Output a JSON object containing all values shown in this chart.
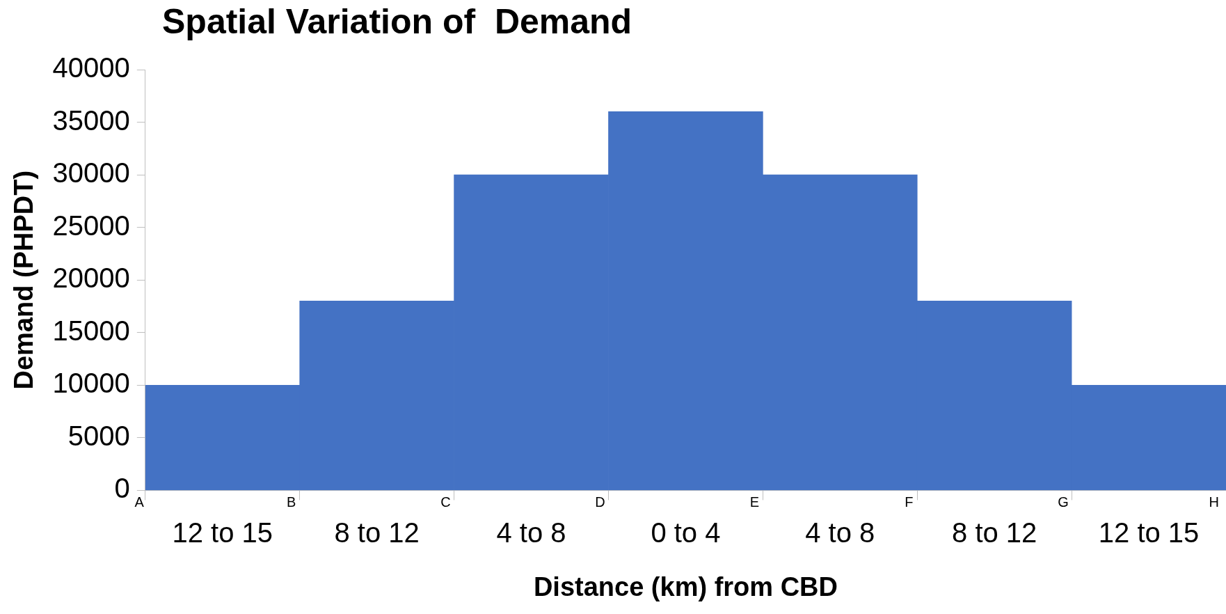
{
  "chart_data": {
    "type": "bar",
    "title": "Spatial Variation of  Demand",
    "xlabel": "Distance (km) from CBD",
    "ylabel": "Demand (PHPDT)",
    "categories": [
      "12 to 15",
      "8 to 12",
      "4 to 8",
      "0 to 4",
      "4 to 8",
      "8 to 12",
      "12 to 15"
    ],
    "values": [
      10000,
      18000,
      30000,
      36000,
      30000,
      18000,
      10000
    ],
    "color": "#4472c4",
    "ylim": [
      0,
      40000
    ],
    "yticks": [
      0,
      5000,
      10000,
      15000,
      20000,
      25000,
      30000,
      35000,
      40000
    ],
    "grid": false,
    "legend": false,
    "annotations": [
      "A",
      "B",
      "C",
      "D",
      "E",
      "F",
      "G",
      "H"
    ]
  }
}
